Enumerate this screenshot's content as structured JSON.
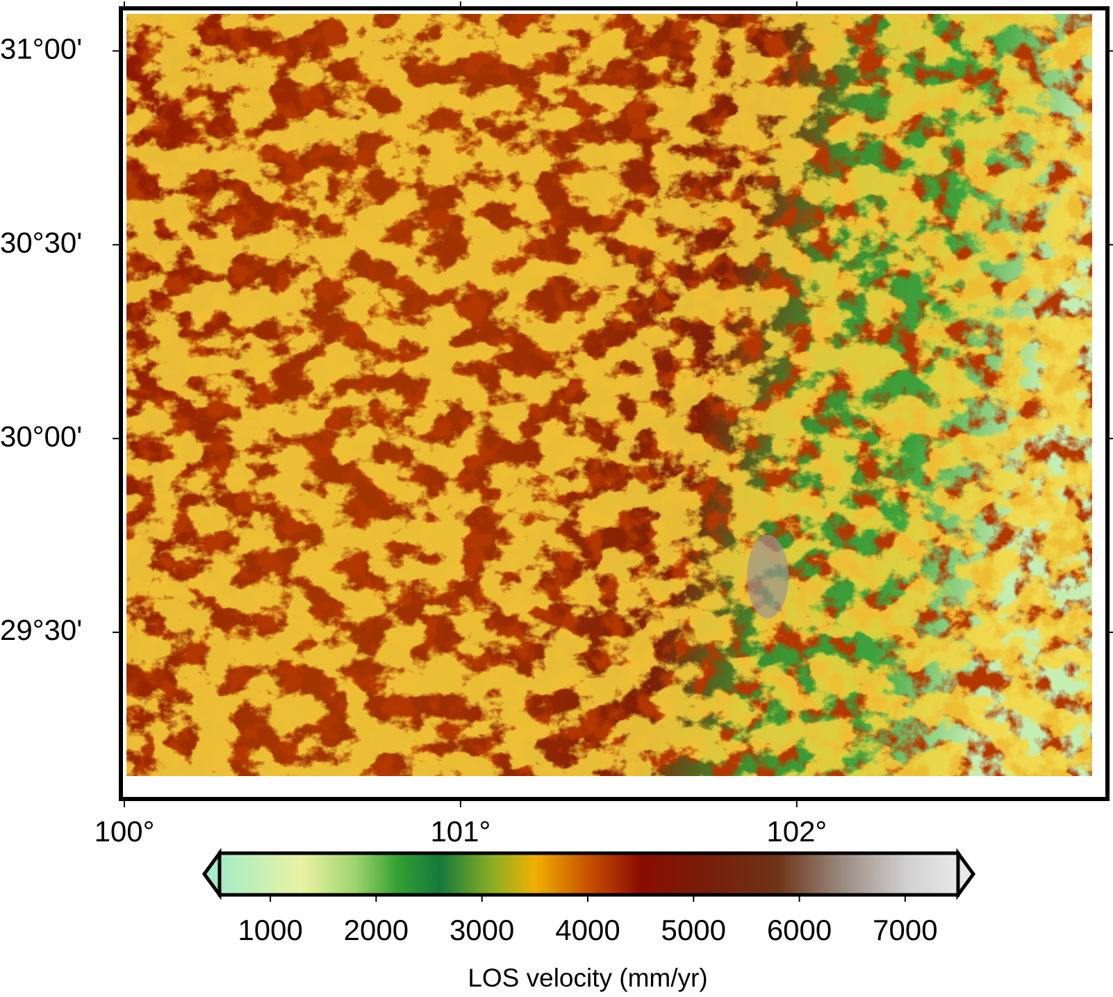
{
  "chart_data": {
    "type": "map",
    "xlim": [
      100,
      102.92
    ],
    "ylim": [
      29.07,
      31.11
    ],
    "xticks": [
      {
        "value": 100,
        "label": "100°"
      },
      {
        "value": 101,
        "label": "101°"
      },
      {
        "value": 102,
        "label": "102°"
      }
    ],
    "yticks": [
      {
        "value": 31,
        "label": "31°00'"
      },
      {
        "value": 30.5,
        "label": "30°30'"
      },
      {
        "value": 30,
        "label": "30°00'"
      },
      {
        "value": 29.5,
        "label": "29°30'"
      }
    ],
    "colorbar": {
      "clim": [
        520,
        7500
      ],
      "ticks": [
        1000,
        2000,
        3000,
        4000,
        5000,
        6000,
        7000
      ],
      "label": "LOS velocity (mm/yr)",
      "colormap": [
        {
          "value": 520,
          "color": "#a6ecc6"
        },
        {
          "value": 1300,
          "color": "#e9f3a2"
        },
        {
          "value": 1800,
          "color": "#9fd46e"
        },
        {
          "value": 2200,
          "color": "#35a032"
        },
        {
          "value": 2600,
          "color": "#137a3c"
        },
        {
          "value": 3100,
          "color": "#8cae22"
        },
        {
          "value": 3500,
          "color": "#f0b000"
        },
        {
          "value": 4000,
          "color": "#c85200"
        },
        {
          "value": 4500,
          "color": "#8a0c00"
        },
        {
          "value": 5200,
          "color": "#76200a"
        },
        {
          "value": 5800,
          "color": "#6e3418"
        },
        {
          "value": 6400,
          "color": "#9a8a80"
        },
        {
          "value": 7000,
          "color": "#cfcfcf"
        },
        {
          "value": 7500,
          "color": "#e8e8e8"
        }
      ]
    }
  }
}
